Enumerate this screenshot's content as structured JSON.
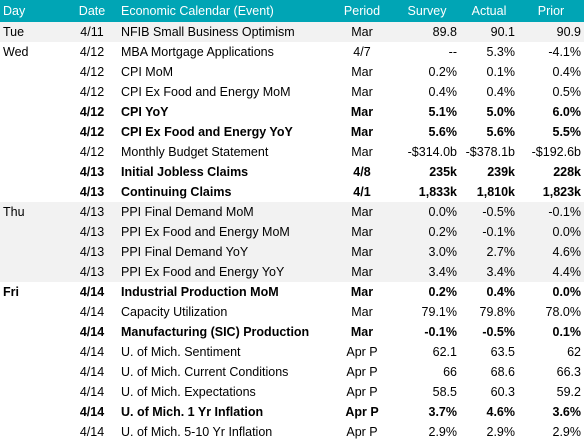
{
  "headers": {
    "day": "Day",
    "date": "Date",
    "event": "Economic Calendar (Event)",
    "period": "Period",
    "survey": "Survey",
    "actual": "Actual",
    "prior": "Prior"
  },
  "colors": {
    "header_bg": "#00a5b5",
    "header_text": "#ffffff",
    "shaded_row": "#f2f2f2"
  },
  "rows": [
    {
      "day": "Tue",
      "date": "4/11",
      "event": "NFIB Small Business Optimism",
      "period": "Mar",
      "survey": "89.8",
      "actual": "90.1",
      "prior": "90.9",
      "bold": false,
      "shaded": true
    },
    {
      "day": "Wed",
      "date": "4/12",
      "event": "MBA Mortgage Applications",
      "period": "4/7",
      "survey": "--",
      "actual": "5.3%",
      "prior": "-4.1%",
      "bold": false,
      "shaded": false
    },
    {
      "day": "",
      "date": "4/12",
      "event": "CPI MoM",
      "period": "Mar",
      "survey": "0.2%",
      "actual": "0.1%",
      "prior": "0.4%",
      "bold": false,
      "shaded": false
    },
    {
      "day": "",
      "date": "4/12",
      "event": "CPI Ex Food and Energy MoM",
      "period": "Mar",
      "survey": "0.4%",
      "actual": "0.4%",
      "prior": "0.5%",
      "bold": false,
      "shaded": false
    },
    {
      "day": "",
      "date": "4/12",
      "event": "CPI YoY",
      "period": "Mar",
      "survey": "5.1%",
      "actual": "5.0%",
      "prior": "6.0%",
      "bold": true,
      "shaded": false
    },
    {
      "day": "",
      "date": "4/12",
      "event": "CPI Ex Food and Energy YoY",
      "period": "Mar",
      "survey": "5.6%",
      "actual": "5.6%",
      "prior": "5.5%",
      "bold": true,
      "shaded": false
    },
    {
      "day": "",
      "date": "4/12",
      "event": "Monthly Budget Statement",
      "period": "Mar",
      "survey": "-$314.0b",
      "actual": "-$378.1b",
      "prior": "-$192.6b",
      "bold": false,
      "shaded": false
    },
    {
      "day": "",
      "date": "4/13",
      "event": "Initial Jobless Claims",
      "period": "4/8",
      "survey": "235k",
      "actual": "239k",
      "prior": "228k",
      "bold": true,
      "shaded": false
    },
    {
      "day": "",
      "date": "4/13",
      "event": "Continuing Claims",
      "period": "4/1",
      "survey": "1,833k",
      "actual": "1,810k",
      "prior": "1,823k",
      "bold": true,
      "shaded": false
    },
    {
      "day": "Thu",
      "date": "4/13",
      "event": "PPI Final Demand MoM",
      "period": "Mar",
      "survey": "0.0%",
      "actual": "-0.5%",
      "prior": "-0.1%",
      "bold": false,
      "shaded": true
    },
    {
      "day": "",
      "date": "4/13",
      "event": "PPI Ex Food and Energy MoM",
      "period": "Mar",
      "survey": "0.2%",
      "actual": "-0.1%",
      "prior": "0.0%",
      "bold": false,
      "shaded": true
    },
    {
      "day": "",
      "date": "4/13",
      "event": "PPI Final Demand YoY",
      "period": "Mar",
      "survey": "3.0%",
      "actual": "2.7%",
      "prior": "4.6%",
      "bold": false,
      "shaded": true
    },
    {
      "day": "",
      "date": "4/13",
      "event": "PPI Ex Food and Energy YoY",
      "period": "Mar",
      "survey": "3.4%",
      "actual": "3.4%",
      "prior": "4.4%",
      "bold": false,
      "shaded": true
    },
    {
      "day": "Fri",
      "date": "4/14",
      "event": "Industrial Production MoM",
      "period": "Mar",
      "survey": "0.2%",
      "actual": "0.4%",
      "prior": "0.0%",
      "bold": true,
      "shaded": false,
      "daybold": true
    },
    {
      "day": "",
      "date": "4/14",
      "event": "Capacity Utilization",
      "period": "Mar",
      "survey": "79.1%",
      "actual": "79.8%",
      "prior": "78.0%",
      "bold": false,
      "shaded": false
    },
    {
      "day": "",
      "date": "4/14",
      "event": "Manufacturing (SIC) Production",
      "period": "Mar",
      "survey": "-0.1%",
      "actual": "-0.5%",
      "prior": "0.1%",
      "bold": true,
      "shaded": false
    },
    {
      "day": "",
      "date": "4/14",
      "event": "U. of Mich. Sentiment",
      "period": "Apr P",
      "survey": "62.1",
      "actual": "63.5",
      "prior": "62",
      "bold": false,
      "shaded": false
    },
    {
      "day": "",
      "date": "4/14",
      "event": "U. of Mich. Current Conditions",
      "period": "Apr P",
      "survey": "66",
      "actual": "68.6",
      "prior": "66.3",
      "bold": false,
      "shaded": false
    },
    {
      "day": "",
      "date": "4/14",
      "event": "U. of Mich. Expectations",
      "period": "Apr P",
      "survey": "58.5",
      "actual": "60.3",
      "prior": "59.2",
      "bold": false,
      "shaded": false
    },
    {
      "day": "",
      "date": "4/14",
      "event": "U. of Mich. 1 Yr Inflation",
      "period": "Apr P",
      "survey": "3.7%",
      "actual": "4.6%",
      "prior": "3.6%",
      "bold": true,
      "shaded": false
    },
    {
      "day": "",
      "date": "4/14",
      "event": "U. of Mich. 5-10 Yr Inflation",
      "period": "Apr P",
      "survey": "2.9%",
      "actual": "2.9%",
      "prior": "2.9%",
      "bold": false,
      "shaded": false
    }
  ]
}
